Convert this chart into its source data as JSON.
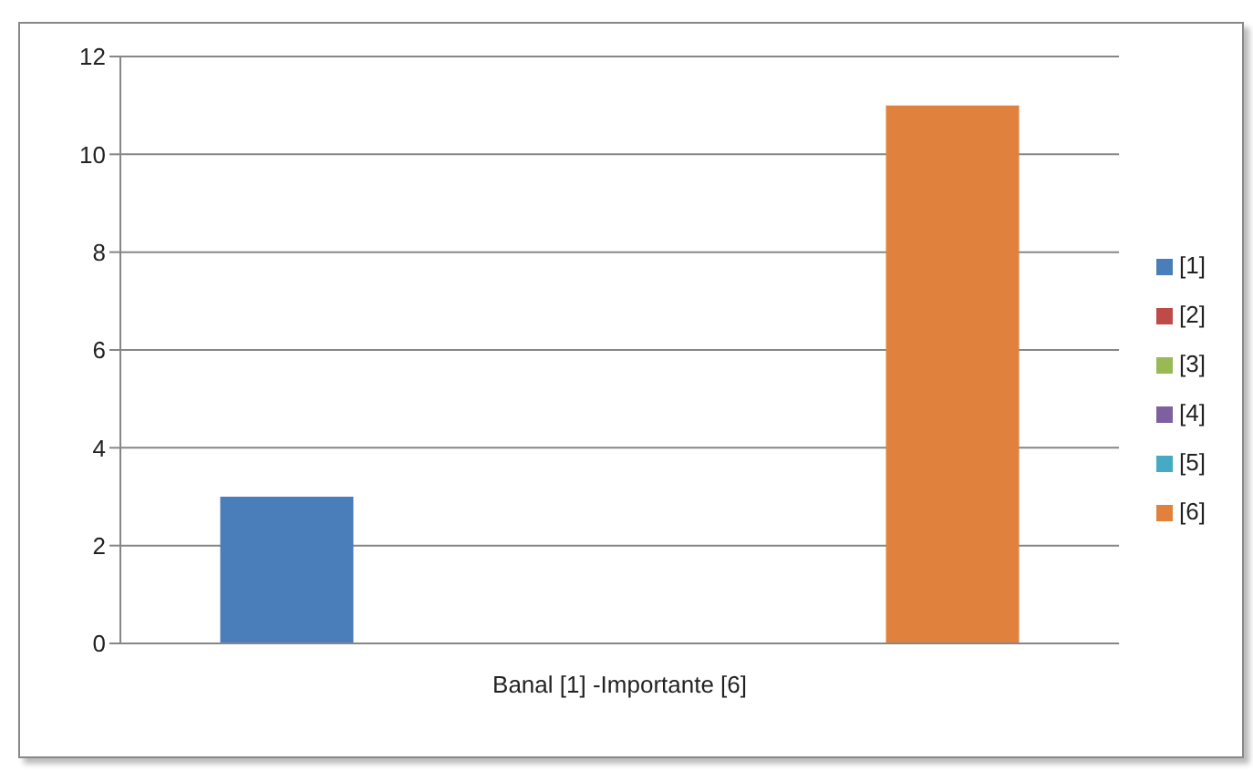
{
  "chart_data": {
    "type": "bar",
    "categories": [
      "Banal [1] -Importante [6]"
    ],
    "series": [
      {
        "name": "[1]",
        "color": "#4a7ebb",
        "values": [
          3
        ]
      },
      {
        "name": "[2]",
        "color": "#be4b48",
        "values": [
          0
        ]
      },
      {
        "name": "[3]",
        "color": "#98b954",
        "values": [
          0
        ]
      },
      {
        "name": "[4]",
        "color": "#7d60a0",
        "values": [
          0
        ]
      },
      {
        "name": "[5]",
        "color": "#46aac5",
        "values": [
          0
        ]
      },
      {
        "name": "[6]",
        "color": "#e0823d",
        "values": [
          11
        ]
      }
    ],
    "ylim": [
      0,
      12
    ],
    "yticks": [
      0,
      2,
      4,
      6,
      8,
      10,
      12
    ],
    "grid": "y",
    "legend": "right"
  }
}
